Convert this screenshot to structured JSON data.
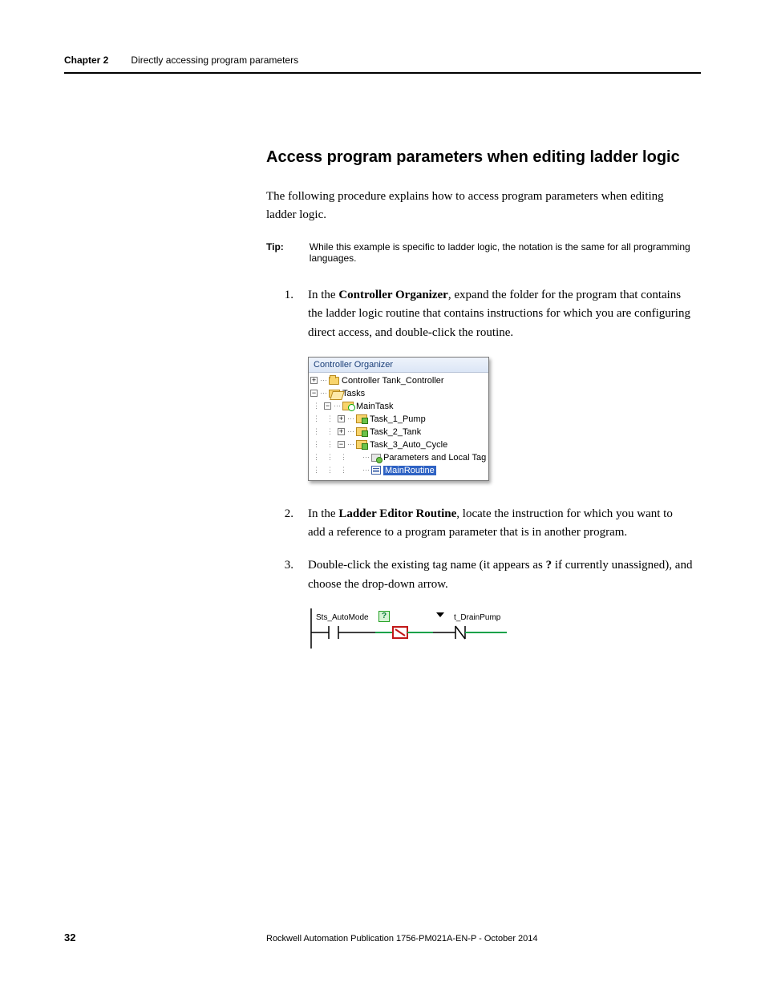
{
  "header": {
    "chapter_label": "Chapter 2",
    "chapter_title": "Directly accessing program parameters"
  },
  "section_title": "Access program parameters when editing ladder logic",
  "intro": "The following procedure explains how to access program parameters when editing ladder logic.",
  "tip": {
    "label": "Tip:",
    "text": "While this example is specific to ladder logic, the notation is the same for all programming languages."
  },
  "steps": [
    {
      "num": "1.",
      "pre": "In the ",
      "bold1": "Controller Organizer",
      "post": ", expand the folder for the program that contains the ladder logic routine that contains instructions for which you are configuring direct access, and double-click the routine."
    },
    {
      "num": "2.",
      "pre": "In the ",
      "bold1": "Ladder Editor Routine",
      "post": ", locate the instruction for which you want to add a reference to a program parameter that is in another program."
    },
    {
      "num": "3.",
      "pre": "Double-click the existing tag name (it appears as ",
      "bold1": "?",
      "post": " if currently unassigned), and choose the drop-down arrow."
    }
  ],
  "fig1": {
    "title": "Controller Organizer",
    "rows": [
      {
        "indent": 0,
        "pm": "+",
        "icon": "folder-closed",
        "label": "Controller Tank_Controller"
      },
      {
        "indent": 0,
        "pm": "−",
        "icon": "folder-open",
        "label": "Tasks"
      },
      {
        "indent": 1,
        "pm": "−",
        "icon": "task-icon",
        "label": "MainTask"
      },
      {
        "indent": 2,
        "pm": "+",
        "icon": "prog-icon",
        "label": "Task_1_Pump"
      },
      {
        "indent": 2,
        "pm": "+",
        "icon": "prog-icon",
        "label": "Task_2_Tank"
      },
      {
        "indent": 2,
        "pm": "−",
        "icon": "prog-icon",
        "label": "Task_3_Auto_Cycle"
      },
      {
        "indent": 3,
        "pm": "",
        "icon": "tags-icon",
        "label": "Parameters and Local Tag"
      },
      {
        "indent": 3,
        "pm": "",
        "icon": "routine-icon",
        "label": "MainRoutine",
        "selected": true
      }
    ]
  },
  "fig2": {
    "left_tag": "Sts_AutoMode",
    "unknown": "?",
    "right_tag": "t_DrainPump",
    "colors": {
      "rung": "#000000",
      "edit_green": "#0aa24a",
      "edit_red": "#c21818"
    }
  },
  "footer": {
    "page": "32",
    "text": "Rockwell Automation Publication 1756-PM021A-EN-P - October 2014"
  }
}
